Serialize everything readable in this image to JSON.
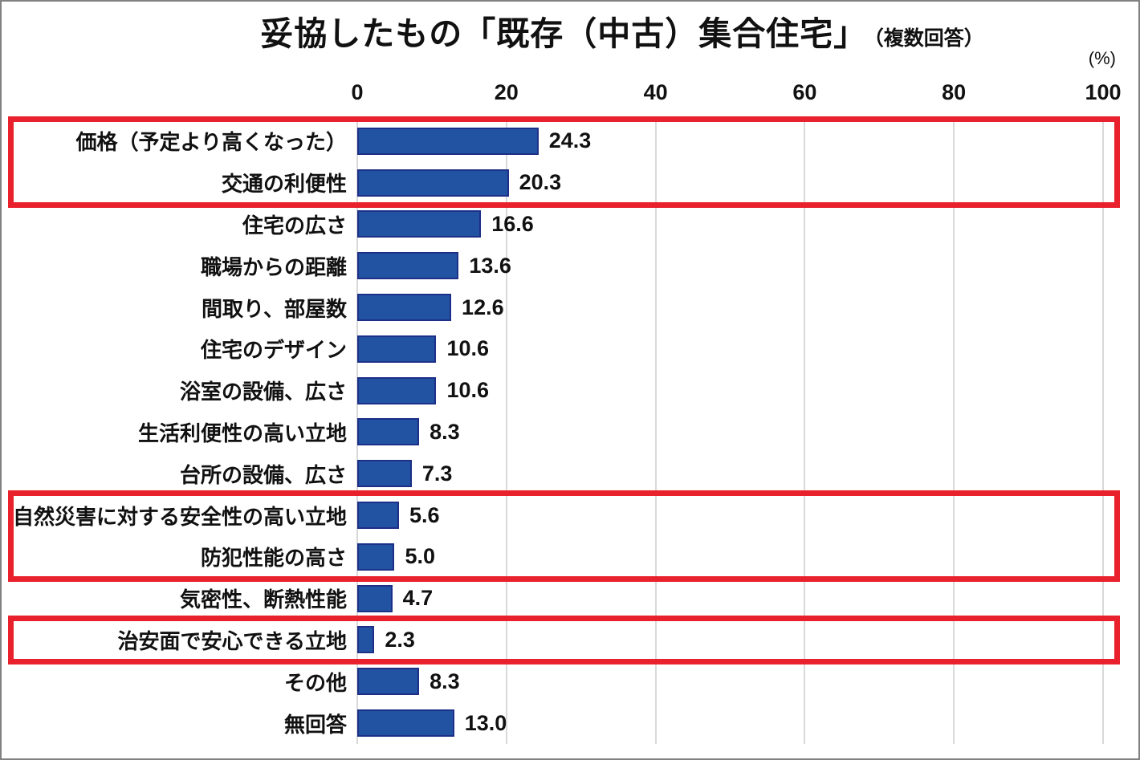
{
  "title": {
    "main": "妥協したもの「既存（中古）集合住宅」",
    "suffix": "（複数回答）"
  },
  "unit_label": "(%)",
  "chart_data": {
    "type": "bar",
    "orientation": "horizontal",
    "title": "妥協したもの「既存（中古）集合住宅」（複数回答）",
    "xlabel": "(%)",
    "ylabel": "",
    "xlim": [
      0,
      100
    ],
    "ticks": [
      0,
      20,
      40,
      60,
      80,
      100
    ],
    "grid": true,
    "categories": [
      "価格（予定より高くなった）",
      "交通の利便性",
      "住宅の広さ",
      "職場からの距離",
      "間取り、部屋数",
      "住宅のデザイン",
      "浴室の設備、広さ",
      "生活利便性の高い立地",
      "台所の設備、広さ",
      "自然災害に対する安全性の高い立地",
      "防犯性能の高さ",
      "気密性、断熱性能",
      "治安面で安心できる立地",
      "その他",
      "無回答"
    ],
    "values": [
      24.3,
      20.3,
      16.6,
      13.6,
      12.6,
      10.6,
      10.6,
      8.3,
      7.3,
      5.6,
      5.0,
      4.7,
      2.3,
      8.3,
      13.0
    ]
  },
  "highlights": [
    {
      "rows": [
        0,
        1
      ]
    },
    {
      "rows": [
        9,
        10
      ]
    },
    {
      "rows": [
        12
      ]
    }
  ],
  "colors": {
    "bar_fill": "#2253a3",
    "bar_border": "#1d2f87",
    "highlight_red": "#e8212d",
    "gridline": "#d9d9d9",
    "frame": "#828282",
    "text": "#111111"
  }
}
